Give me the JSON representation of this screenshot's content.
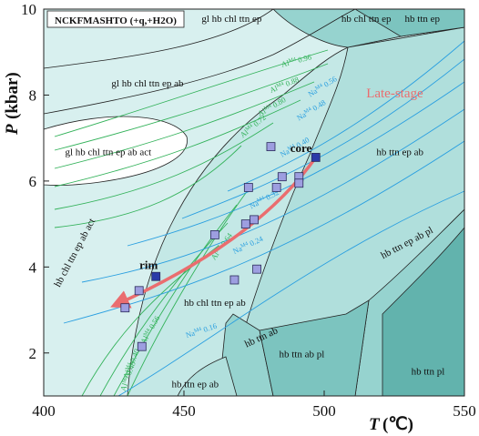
{
  "colors": {
    "c1": "#d8f0ef",
    "c2": "#c4e8e6",
    "c3": "#b0dfdc",
    "c4": "#96d3cf",
    "c5": "#7cc4bf",
    "c6": "#62b3ad",
    "white": "#ffffff",
    "al_line": "#33b25a",
    "na_line": "#2a9fe0",
    "data_marker": "#9d9ee0",
    "special_marker": "#2a3aa8",
    "trend_arrow": "#ea6d6f",
    "late_stage_text": "#ea6d6f"
  },
  "chart_data": {
    "type": "scatter",
    "title": "",
    "system_label": "NCKFMASHTO (+q,+H2O)",
    "xlabel": "T",
    "xlabel_unit": "(℃)",
    "ylabel": "P",
    "ylabel_unit": "(kbar)",
    "xlim": [
      400,
      550
    ],
    "ylim": [
      1,
      10
    ],
    "x_ticks": [
      400,
      450,
      500,
      550
    ],
    "y_ticks": [
      2,
      4,
      6,
      8,
      10
    ],
    "x_tick_labels": [
      "400",
      "450",
      "500",
      "550"
    ],
    "y_tick_labels": [
      "2",
      "4",
      "6",
      "8",
      "10"
    ],
    "series": [
      {
        "marker": "square",
        "points": [
          [
            429,
            3.05
          ],
          [
            434,
            3.45
          ],
          [
            435,
            2.15
          ],
          [
            461,
            4.75
          ],
          [
            468,
            3.7
          ],
          [
            472,
            5.0
          ],
          [
            473,
            5.85
          ],
          [
            475,
            5.1
          ],
          [
            476,
            3.95
          ],
          [
            481,
            6.8
          ],
          [
            483,
            5.85
          ],
          [
            485,
            6.1
          ],
          [
            491,
            6.1
          ],
          [
            491,
            5.95
          ]
        ]
      },
      {
        "name": "rim",
        "marker": "square",
        "points": [
          [
            440,
            3.78
          ]
        ]
      },
      {
        "name": "core",
        "marker": "square",
        "points": [
          [
            497,
            6.55
          ]
        ]
      }
    ],
    "trend_arrow": {
      "from": [
        497,
        6.55
      ],
      "to": [
        425,
        3.1
      ],
      "label": "Late-stage"
    },
    "fields": [
      {
        "label": "gl hb chl ttn ep",
        "x": 467,
        "y": 9.7
      },
      {
        "label": "hb chl ttn ep",
        "x": 515,
        "y": 9.7
      },
      {
        "label": "hb ttn ep",
        "x": 535,
        "y": 9.7
      },
      {
        "label": "gl hb chl ttn ep ab",
        "x": 437,
        "y": 8.2
      },
      {
        "label": "gl hb chl ttn ep ab act",
        "x": 423,
        "y": 6.6
      },
      {
        "label": "hb chl ttn ep ab act",
        "x": 412,
        "y": 4.3,
        "rotation": -62
      },
      {
        "label": "hb ttn ep ab",
        "x": 527,
        "y": 6.6
      },
      {
        "label": "hb ttn ep ab pl",
        "x": 530,
        "y": 4.5,
        "rotation": -28
      },
      {
        "label": "hb chl ttn ep ab",
        "x": 461,
        "y": 3.1
      },
      {
        "label": "hb ttn ab",
        "x": 478,
        "y": 2.3,
        "rotation": -25
      },
      {
        "label": "hb ttn ab pl",
        "x": 492,
        "y": 1.9
      },
      {
        "label": "hb ttn pl",
        "x": 537,
        "y": 1.5
      },
      {
        "label": "hb ttn ep ab",
        "x": 454,
        "y": 1.2
      }
    ],
    "isopleths": [
      {
        "family": "Al",
        "label": "Al",
        "value": "0.96",
        "x": 485,
        "y": 8.65,
        "rotation": -15
      },
      {
        "family": "Al",
        "label": "Al",
        "value": "0.88",
        "x": 481,
        "y": 8.05,
        "rotation": -22
      },
      {
        "family": "Al",
        "label": "Al",
        "value": "0.80",
        "x": 477,
        "y": 7.5,
        "rotation": -30
      },
      {
        "family": "Al",
        "label": "Al",
        "value": "0.72",
        "x": 471,
        "y": 7.0,
        "rotation": -40
      },
      {
        "family": "Al",
        "label": "Al",
        "value": "0.40",
        "x": 430,
        "y": 1.4,
        "rotation": -68
      },
      {
        "family": "Al",
        "label": "Al",
        "value": "0.48",
        "x": 429,
        "y": 1.1,
        "rotation": -70
      },
      {
        "family": "Al",
        "label": "Al",
        "value": "0.56",
        "x": 436,
        "y": 2.2,
        "rotation": -60
      },
      {
        "family": "Al",
        "label": "Al",
        "value": "0.64",
        "x": 461,
        "y": 4.15,
        "rotation": -55
      },
      {
        "family": "Na",
        "label": "Na",
        "value": "0.56",
        "x": 495,
        "y": 7.95,
        "rotation": -32
      },
      {
        "family": "Na",
        "label": "Na",
        "value": "0.48",
        "x": 491,
        "y": 7.4,
        "rotation": -32
      },
      {
        "family": "Na",
        "label": "Na",
        "value": "0.40",
        "x": 485,
        "y": 6.55,
        "rotation": -30
      },
      {
        "family": "Na",
        "label": "Na",
        "value": "0.32",
        "x": 474,
        "y": 5.35,
        "rotation": -28
      },
      {
        "family": "Na",
        "label": "Na",
        "value": "0.24",
        "x": 468,
        "y": 4.3,
        "rotation": -25
      },
      {
        "family": "Na",
        "label": "Na",
        "value": "0.16",
        "x": 451,
        "y": 2.35,
        "rotation": -18
      }
    ]
  }
}
